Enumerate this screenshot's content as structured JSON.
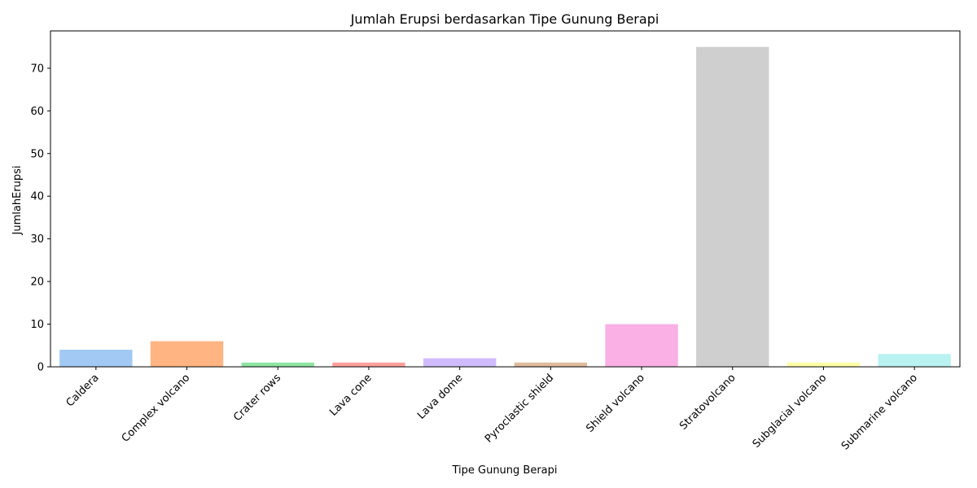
{
  "chart_data": {
    "type": "bar",
    "title": "Jumlah Erupsi berdasarkan Tipe Gunung Berapi",
    "xlabel": "Tipe Gunung Berapi",
    "ylabel": "JumlahErupsi",
    "categories": [
      "Caldera",
      "Complex volcano",
      "Crater rows",
      "Lava cone",
      "Lava dome",
      "Pyroclastic shield",
      "Shield volcano",
      "Stratovolcano",
      "Subglacial volcano",
      "Submarine volcano"
    ],
    "values": [
      4,
      6,
      1,
      1,
      2,
      1,
      10,
      75,
      1,
      3
    ],
    "colors": [
      "#a1c9f4",
      "#ffb482",
      "#8de5a1",
      "#ff9f9b",
      "#d0bbff",
      "#debb9b",
      "#fab0e4",
      "#cfcfcf",
      "#fffea3",
      "#b9f2f0"
    ],
    "yticks": [
      0,
      10,
      20,
      30,
      40,
      50,
      60,
      70
    ],
    "ylim": [
      0,
      78.75
    ],
    "grid": false,
    "legend": "none"
  }
}
